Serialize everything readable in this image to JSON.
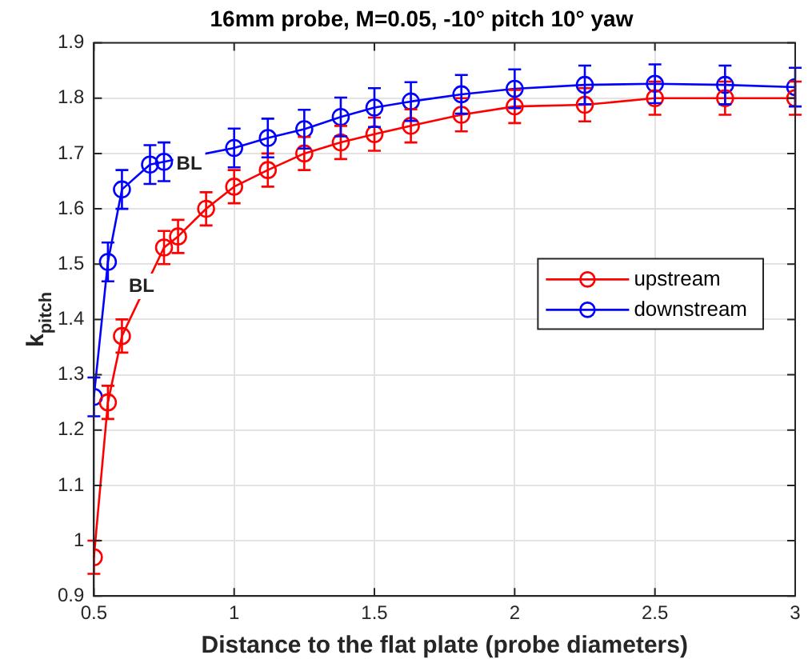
{
  "chart_data": {
    "type": "line",
    "title": "16mm probe, M=0.05, -10° pitch 10° yaw",
    "xlabel": "Distance to the flat plate (probe diameters)",
    "ylabel": "k$_{pitch}$",
    "xlim": [
      0.5,
      3
    ],
    "xticks": [
      0.5,
      1,
      1.5,
      2,
      2.5,
      3
    ],
    "ylim": [
      0.9,
      1.9
    ],
    "yticks": [
      0.9,
      1,
      1.1,
      1.2,
      1.3,
      1.4,
      1.5,
      1.6,
      1.7,
      1.8,
      1.9
    ],
    "grid": true,
    "legend": "right",
    "marker": "circle",
    "line_style": "solid",
    "annotations": [
      {
        "text": "BL",
        "x": 0.84,
        "y": 1.68
      },
      {
        "text": "BL",
        "x": 0.67,
        "y": 1.46
      }
    ],
    "series": [
      {
        "name": "upstream",
        "color": "#ff0000",
        "x": [
          0.5,
          0.55,
          0.6,
          0.75,
          0.8,
          0.9,
          1.0,
          1.12,
          1.25,
          1.38,
          1.5,
          1.63,
          1.81,
          2.0,
          2.25,
          2.5,
          2.75,
          3.0
        ],
        "values": [
          0.97,
          1.25,
          1.37,
          1.53,
          1.55,
          1.6,
          1.64,
          1.67,
          1.7,
          1.72,
          1.735,
          1.75,
          1.77,
          1.785,
          1.788,
          1.8,
          1.8,
          1.8
        ],
        "errors": [
          0.03,
          0.03,
          0.03,
          0.03,
          0.03,
          0.03,
          0.03,
          0.03,
          0.03,
          0.03,
          0.03,
          0.03,
          0.03,
          0.03,
          0.03,
          0.03,
          0.03,
          0.03
        ]
      },
      {
        "name": "downstream",
        "color": "#0000ff",
        "x": [
          0.5,
          0.55,
          0.6,
          0.7,
          0.75,
          1.0,
          1.12,
          1.25,
          1.38,
          1.5,
          1.63,
          1.81,
          2.0,
          2.25,
          2.5,
          2.75,
          3.0
        ],
        "values": [
          1.26,
          1.504,
          1.635,
          1.68,
          1.685,
          1.71,
          1.728,
          1.744,
          1.766,
          1.783,
          1.794,
          1.807,
          1.817,
          1.824,
          1.826,
          1.824,
          1.82
        ],
        "errors": [
          0.035,
          0.035,
          0.035,
          0.035,
          0.035,
          0.035,
          0.035,
          0.035,
          0.035,
          0.035,
          0.035,
          0.035,
          0.035,
          0.035,
          0.035,
          0.035,
          0.035
        ]
      }
    ]
  }
}
